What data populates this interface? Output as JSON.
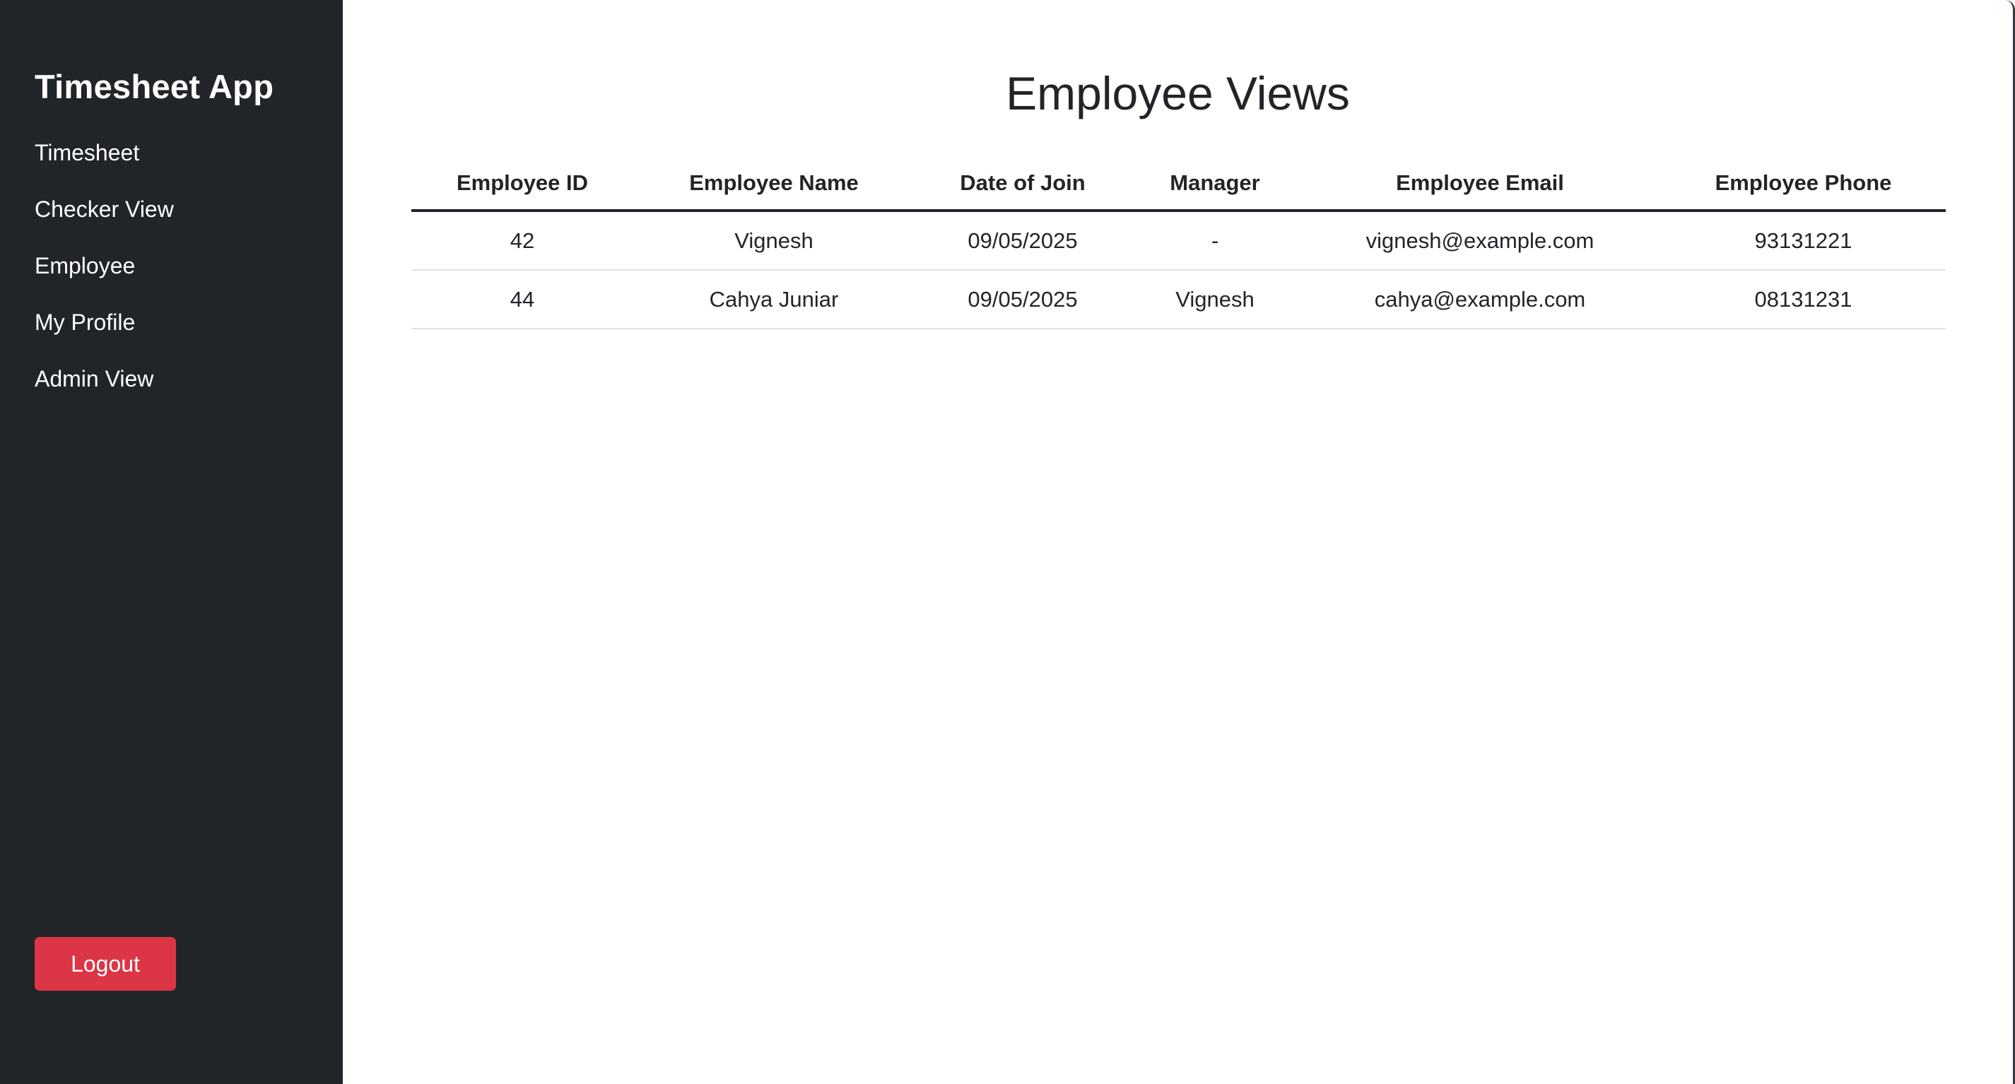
{
  "sidebar": {
    "brand": "Timesheet App",
    "items": [
      {
        "label": "Timesheet"
      },
      {
        "label": "Checker View"
      },
      {
        "label": "Employee"
      },
      {
        "label": "My Profile"
      },
      {
        "label": "Admin View"
      }
    ],
    "logout_label": "Logout"
  },
  "main": {
    "title": "Employee Views",
    "table": {
      "columns": [
        "Employee ID",
        "Employee Name",
        "Date of Join",
        "Manager",
        "Employee Email",
        "Employee Phone"
      ],
      "rows": [
        [
          "42",
          "Vignesh",
          "09/05/2025",
          "-",
          "vignesh@example.com",
          "93131221"
        ],
        [
          "44",
          "Cahya Juniar",
          "09/05/2025",
          "Vignesh",
          "cahya@example.com",
          "08131231"
        ]
      ]
    }
  },
  "colors": {
    "sidebar_bg": "#212529",
    "logout_bg": "#dc3545",
    "text": "#212529",
    "row_border": "#dee2e6"
  }
}
